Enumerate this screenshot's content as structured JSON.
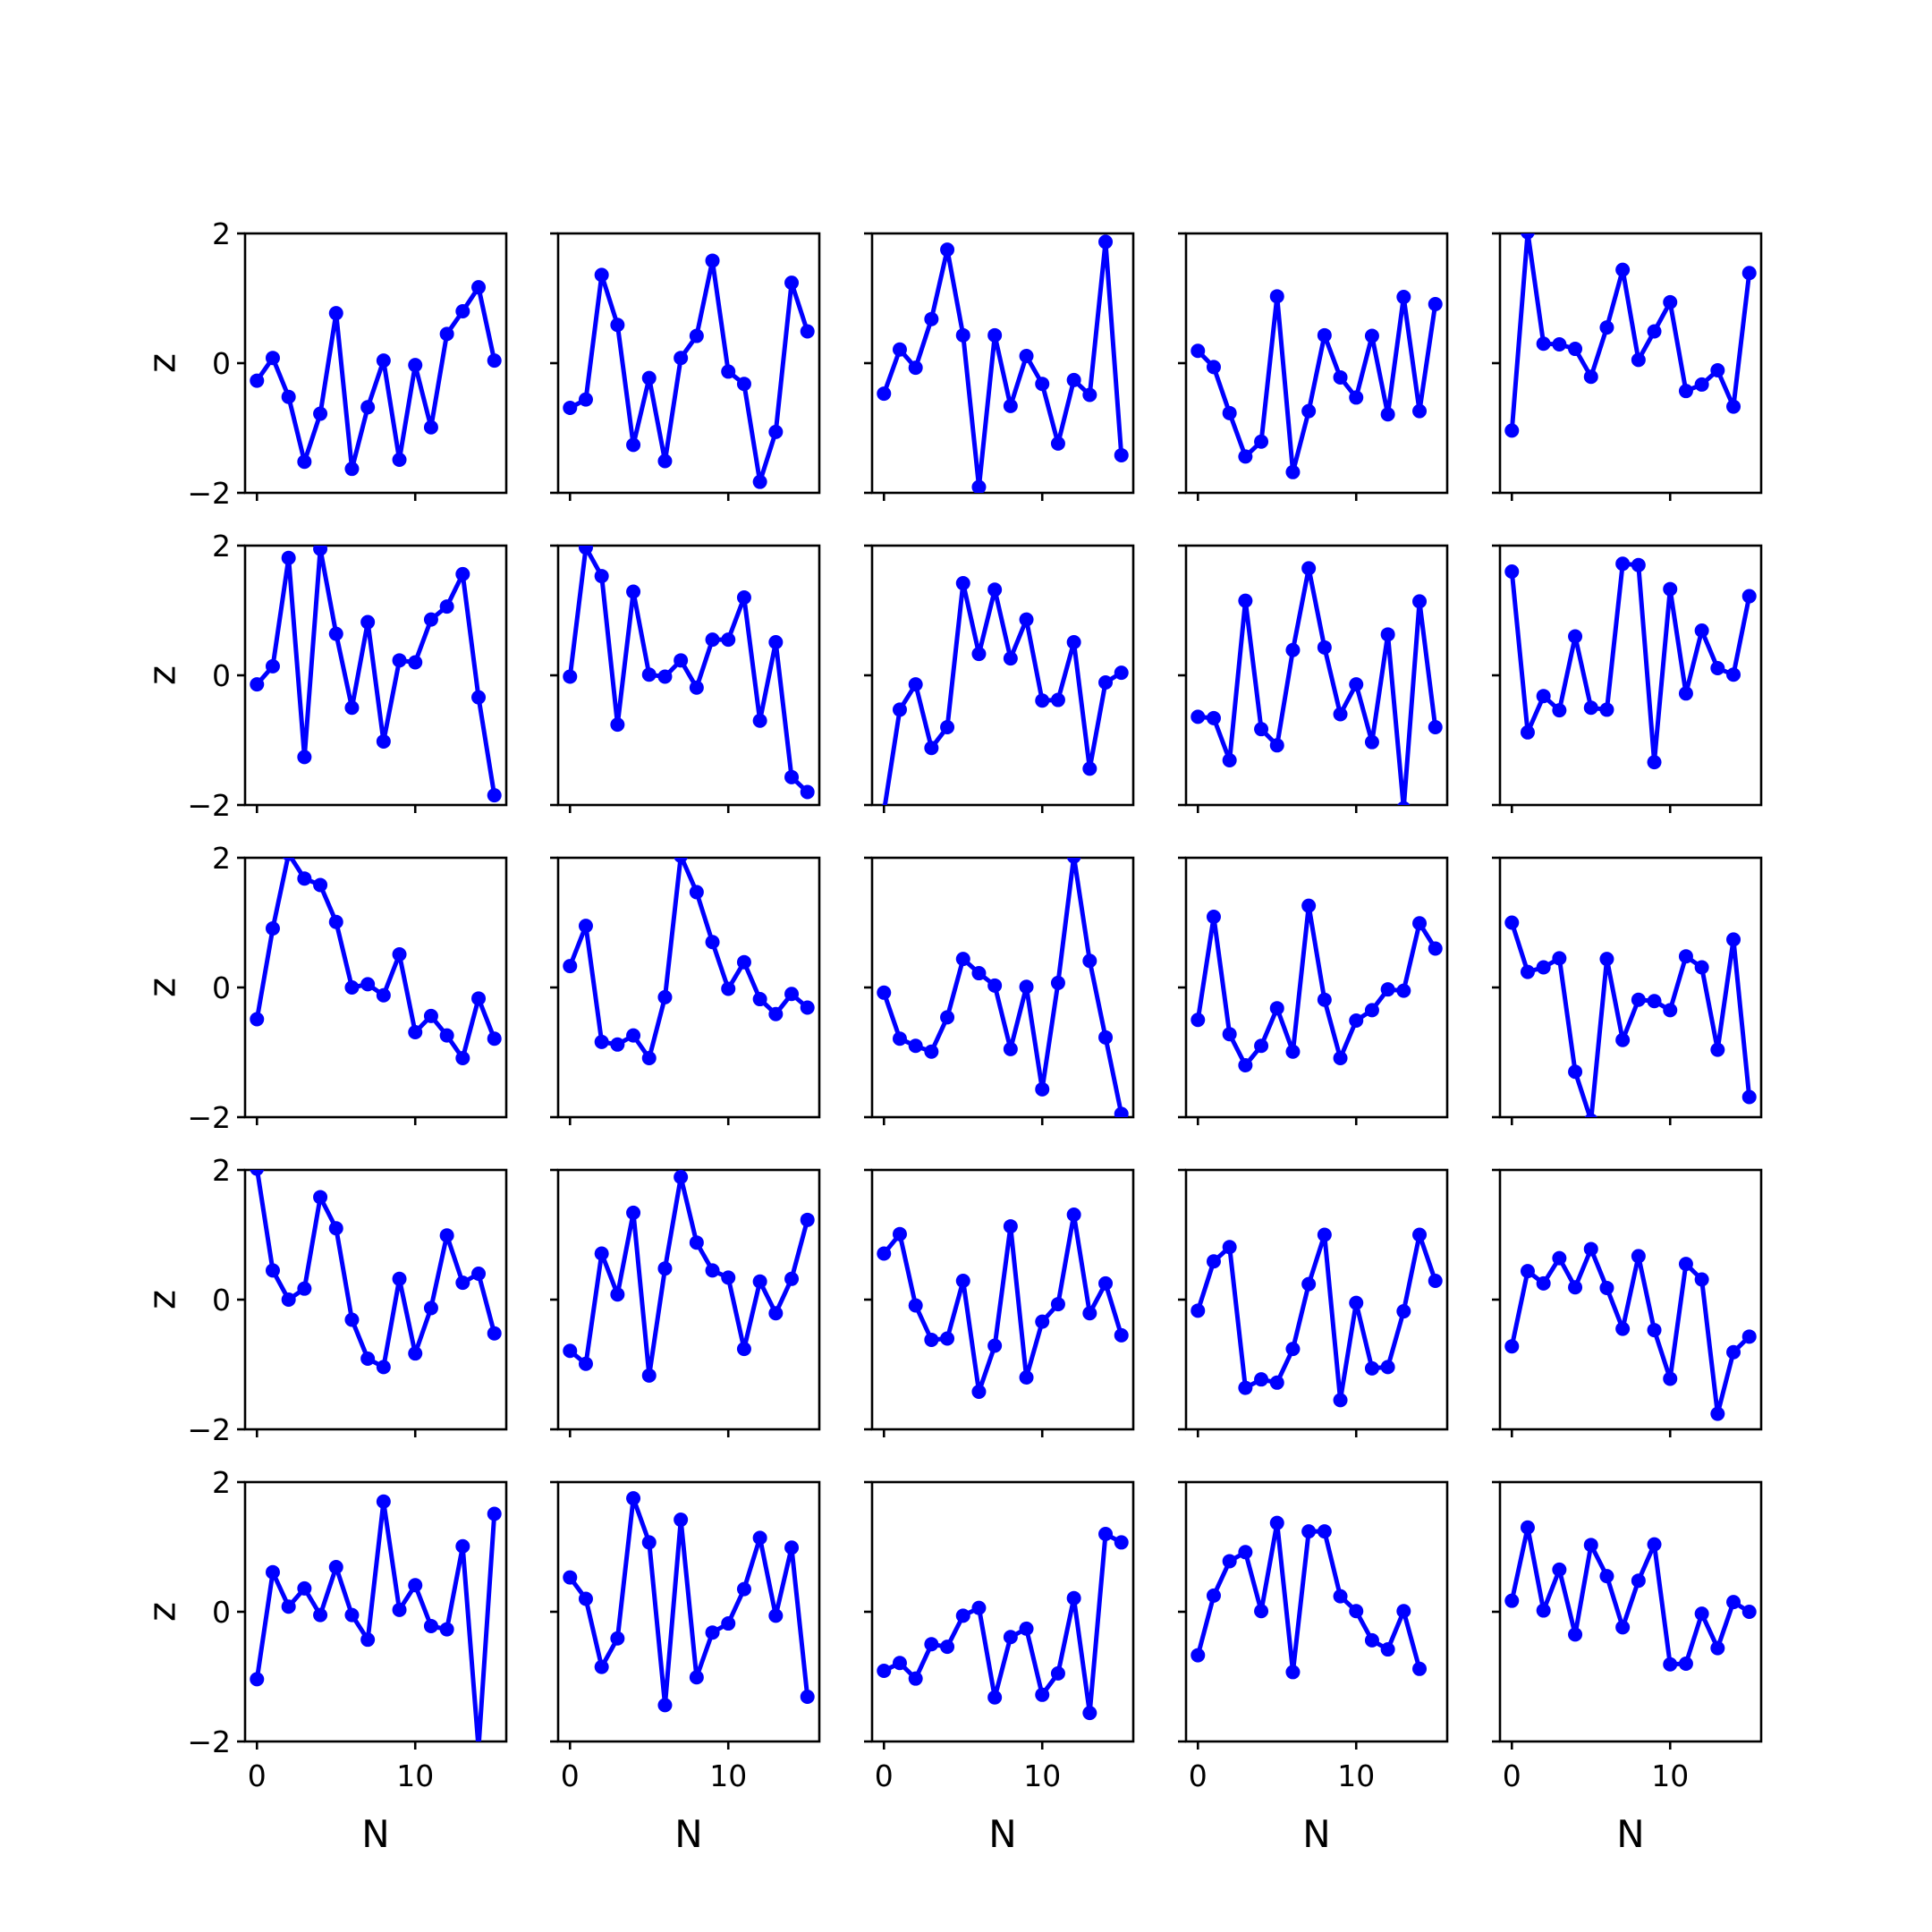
{
  "chart_data": {
    "type": "line",
    "layout": {
      "rows": 5,
      "cols": 5,
      "sharex": true,
      "sharey": true
    },
    "xlabel": "N",
    "ylabel": "z",
    "xlim": [
      -0.75,
      15.75
    ],
    "ylim": [
      -2,
      2
    ],
    "xticks": [
      0,
      10
    ],
    "yticks": [
      -2,
      0,
      2
    ],
    "color": "#0000ff",
    "x": [
      0,
      1,
      2,
      3,
      4,
      5,
      6,
      7,
      8,
      9,
      10,
      11,
      12,
      13,
      14,
      15
    ],
    "panels": [
      [
        [
          -0.27,
          0.08,
          -0.52,
          -1.52,
          -0.78,
          0.77,
          -1.63,
          -0.68,
          0.04,
          -1.49,
          -0.03,
          -0.99,
          0.45,
          0.8,
          1.17,
          0.04
        ],
        [
          -0.69,
          -0.56,
          1.36,
          0.59,
          -1.26,
          -0.23,
          -1.51,
          0.08,
          0.42,
          1.58,
          -0.13,
          -0.32,
          -1.83,
          -1.06,
          1.24,
          0.49
        ],
        [
          -0.47,
          0.21,
          -0.07,
          0.68,
          1.75,
          0.43,
          -1.91,
          0.43,
          -0.66,
          0.11,
          -0.32,
          -1.24,
          -0.26,
          -0.49,
          1.87,
          -1.42
        ],
        [
          0.19,
          -0.06,
          -0.77,
          -1.44,
          -1.21,
          1.03,
          -1.68,
          -0.74,
          0.43,
          -0.22,
          -0.53,
          0.42,
          -0.79,
          1.02,
          -0.74,
          0.91
        ],
        [
          -1.04,
          2.02,
          0.3,
          0.29,
          0.22,
          -0.21,
          0.55,
          1.44,
          0.05,
          0.49,
          0.94,
          -0.43,
          -0.33,
          -0.11,
          -0.67,
          1.39
        ]
      ],
      [
        [
          -0.14,
          0.14,
          1.81,
          -1.26,
          1.95,
          0.64,
          -0.5,
          0.82,
          -1.02,
          0.23,
          0.2,
          0.86,
          1.06,
          1.56,
          -0.34,
          -1.85
        ],
        [
          -0.02,
          1.97,
          1.53,
          -0.76,
          1.29,
          0.01,
          -0.02,
          0.23,
          -0.19,
          0.55,
          0.55,
          1.2,
          -0.7,
          0.51,
          -1.57,
          -1.8
        ],
        [
          -2.1,
          -0.53,
          -0.14,
          -1.12,
          -0.8,
          1.42,
          0.33,
          1.32,
          0.26,
          0.86,
          -0.39,
          -0.38,
          0.51,
          -1.44,
          -0.11,
          0.04
        ],
        [
          -0.64,
          -0.66,
          -1.31,
          1.15,
          -0.83,
          -1.08,
          0.39,
          1.65,
          0.43,
          -0.6,
          -0.14,
          -1.03,
          0.63,
          -2.05,
          1.14,
          -0.8
        ],
        [
          1.6,
          -0.88,
          -0.32,
          -0.54,
          0.6,
          -0.5,
          -0.53,
          1.72,
          1.7,
          -1.34,
          1.33,
          -0.28,
          0.69,
          0.11,
          0.01,
          1.22
        ]
      ],
      [
        [
          -0.49,
          0.91,
          2.06,
          1.68,
          1.58,
          1.01,
          0.0,
          0.05,
          -0.12,
          0.51,
          -0.69,
          -0.44,
          -0.74,
          -1.09,
          -0.17,
          -0.79
        ],
        [
          0.33,
          0.95,
          -0.84,
          -0.88,
          -0.74,
          -1.09,
          -0.15,
          2.03,
          1.47,
          0.7,
          -0.02,
          0.39,
          -0.18,
          -0.41,
          -0.1,
          -0.31
        ],
        [
          -0.08,
          -0.79,
          -0.9,
          -0.99,
          -0.46,
          0.44,
          0.22,
          0.03,
          -0.95,
          0.01,
          -1.57,
          0.07,
          2.02,
          0.41,
          -0.77,
          -1.95
        ],
        [
          -0.5,
          1.09,
          -0.72,
          -1.2,
          -0.9,
          -0.32,
          -0.99,
          1.26,
          -0.19,
          -1.09,
          -0.51,
          -0.35,
          -0.03,
          -0.05,
          0.99,
          0.6
        ],
        [
          1.0,
          0.24,
          0.31,
          0.45,
          -1.3,
          -2.05,
          0.44,
          -0.81,
          -0.19,
          -0.21,
          -0.35,
          0.48,
          0.31,
          -0.96,
          0.74,
          -1.69
        ]
      ],
      [
        [
          2.02,
          0.45,
          0.0,
          0.17,
          1.58,
          1.1,
          -0.31,
          -0.91,
          -1.04,
          0.32,
          -0.83,
          -0.13,
          0.99,
          0.26,
          0.4,
          -0.52
        ],
        [
          -0.79,
          -0.99,
          0.71,
          0.08,
          1.34,
          -1.17,
          0.48,
          1.89,
          0.88,
          0.45,
          0.34,
          -0.76,
          0.28,
          -0.21,
          0.32,
          1.23
        ],
        [
          0.71,
          1.01,
          -0.09,
          -0.62,
          -0.6,
          0.29,
          -1.42,
          -0.71,
          1.13,
          -1.2,
          -0.34,
          -0.07,
          1.31,
          -0.21,
          0.25,
          -0.55
        ],
        [
          -0.17,
          0.59,
          0.81,
          -1.36,
          -1.23,
          -1.28,
          -0.76,
          0.24,
          1.0,
          -1.55,
          -0.05,
          -1.06,
          -1.04,
          -0.18,
          1.0,
          0.29
        ],
        [
          -0.72,
          0.44,
          0.25,
          0.64,
          0.19,
          0.78,
          0.18,
          -0.45,
          0.67,
          -0.47,
          -1.22,
          0.55,
          0.31,
          -1.76,
          -0.81,
          -0.57
        ]
      ],
      [
        [
          -1.04,
          0.61,
          0.08,
          0.36,
          -0.05,
          0.69,
          -0.05,
          -0.43,
          1.7,
          0.03,
          0.41,
          -0.22,
          -0.27,
          1.01,
          -2.1,
          1.51
        ],
        [
          0.53,
          0.2,
          -0.85,
          -0.41,
          1.75,
          1.07,
          -1.44,
          1.42,
          -1.01,
          -0.32,
          -0.18,
          0.35,
          1.14,
          -0.06,
          0.99,
          -1.31
        ],
        [
          -0.91,
          -0.79,
          -1.03,
          -0.5,
          -0.54,
          -0.06,
          0.06,
          -1.32,
          -0.39,
          -0.26,
          -1.28,
          -0.95,
          0.21,
          -1.56,
          1.2,
          1.07
        ],
        [
          -0.67,
          0.25,
          0.78,
          0.92,
          0.01,
          1.37,
          -0.93,
          1.24,
          1.24,
          0.24,
          0.01,
          -0.44,
          -0.58,
          0.01,
          -0.88,
          null
        ],
        [
          0.17,
          1.3,
          0.02,
          0.65,
          -0.35,
          1.03,
          0.55,
          -0.24,
          0.48,
          1.04,
          -0.81,
          -0.8,
          -0.03,
          -0.56,
          0.15,
          0.0
        ]
      ]
    ]
  }
}
